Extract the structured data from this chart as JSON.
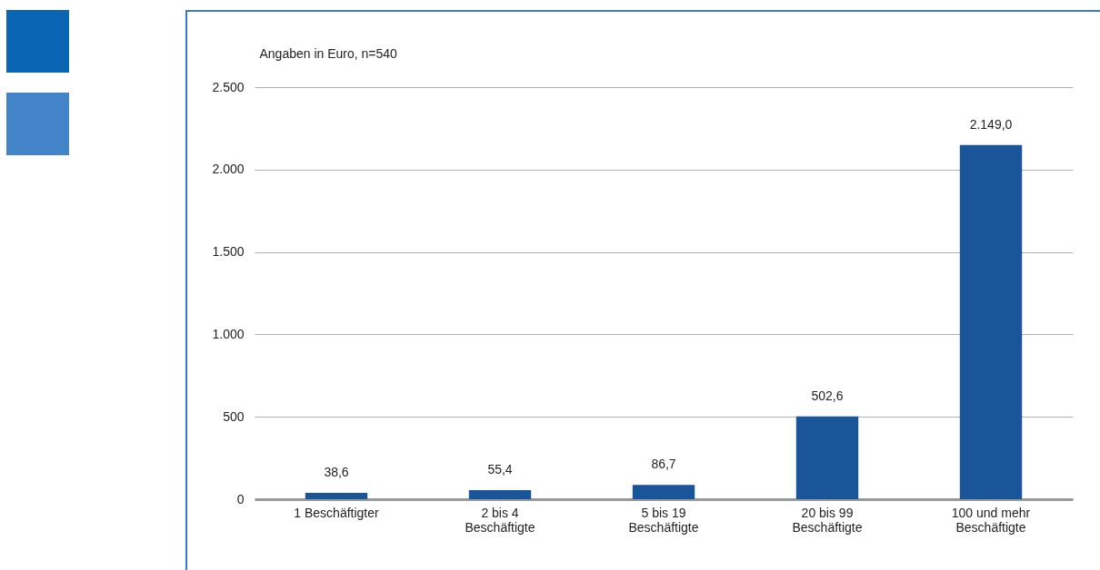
{
  "chart_data": {
    "type": "bar",
    "ylabel": "Angaben in Euro, n=540",
    "categories": [
      "1 Beschäftigter",
      "2 bis 4 Beschäftigte",
      "5 bis 19 Beschäftigte",
      "20 bis 99 Beschäftigte",
      "100 und mehr Beschäftigte"
    ],
    "values": [
      38.6,
      55.4,
      86.7,
      502.6,
      2149.0
    ],
    "value_labels": [
      "38,6",
      "55,4",
      "86,7",
      "502,6",
      "2.149,0"
    ],
    "color": "#1a5599",
    "ylim": [
      0,
      2500
    ],
    "yticks": [
      0,
      500,
      {
        "value": 1000,
        "label": "1.000"
      },
      {
        "value": 1500,
        "label": "1.500"
      },
      {
        "value": 2000,
        "label": "2.000"
      },
      {
        "value": 2500,
        "label": "2.500"
      }
    ],
    "grid": "y"
  }
}
